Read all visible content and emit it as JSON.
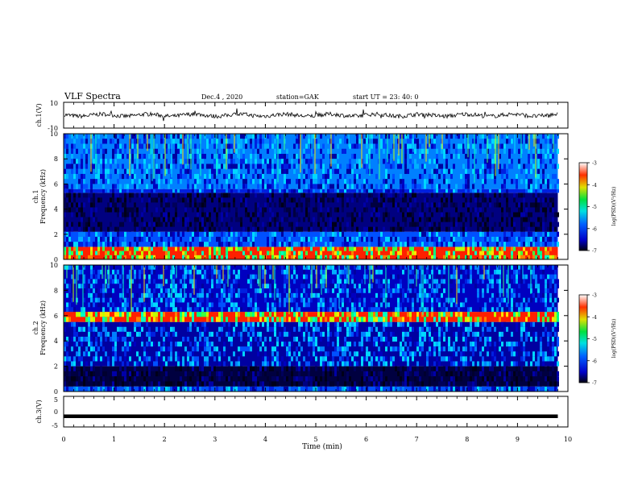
{
  "header": {
    "title": "VLF Spectra",
    "date": "Dec.4 , 2020",
    "station": "station=GAK",
    "start": "start UT = 23: 40: 0"
  },
  "chart_data": [
    {
      "id": "ch1-waveform",
      "type": "line",
      "ylabel": "ch.1(V)",
      "ylim": [
        -10,
        10
      ],
      "y_ticks": [
        "10",
        "-10"
      ],
      "xlim": [
        0,
        10
      ],
      "baseline": 0,
      "trace_color": "#000000"
    },
    {
      "id": "ch1-spectrogram",
      "type": "heatmap",
      "ylabel": "ch.1",
      "ylabel2": "Frequency (kHz)",
      "ylim": [
        0,
        10
      ],
      "y_ticks": [
        "0",
        "2",
        "4",
        "6",
        "8",
        "10"
      ],
      "xlim": [
        0,
        9.8
      ],
      "bands": [
        {
          "lo": 0,
          "hi": 1,
          "level": "high"
        },
        {
          "lo": 1,
          "hi": 2.2,
          "level": "medium"
        },
        {
          "lo": 2.2,
          "hi": 5.3,
          "level": "low"
        },
        {
          "lo": 5.3,
          "hi": 5.6,
          "level": "medium"
        },
        {
          "lo": 5.6,
          "hi": 10,
          "level": "medium"
        }
      ],
      "colorbar": {
        "label": "log(PSD)(V²/Hz)",
        "ticks": [
          "-3",
          "-4",
          "-5",
          "-6",
          "-7"
        ],
        "range": [
          -7,
          -3
        ]
      }
    },
    {
      "id": "ch2-spectrogram",
      "type": "heatmap",
      "ylabel": "ch.2",
      "ylabel2": "Frequency (kHz)",
      "ylim": [
        0,
        10
      ],
      "y_ticks": [
        "0",
        "2",
        "4",
        "6",
        "8",
        "10"
      ],
      "xlim": [
        0,
        9.8
      ],
      "bands": [
        {
          "lo": 0,
          "hi": 0.4,
          "level": "medium"
        },
        {
          "lo": 0.4,
          "hi": 2.0,
          "level": "low"
        },
        {
          "lo": 2.0,
          "hi": 5.5,
          "level": "medium"
        },
        {
          "lo": 5.5,
          "hi": 6.3,
          "level": "high"
        },
        {
          "lo": 6.3,
          "hi": 10,
          "level": "medium"
        }
      ],
      "colorbar": {
        "label": "log(PSD)(V²/Hz)",
        "ticks": [
          "-3",
          "-4",
          "-5",
          "-6",
          "-7"
        ],
        "range": [
          -7,
          -3
        ]
      }
    },
    {
      "id": "ch3-waveform",
      "type": "line",
      "ylabel": "ch.3(V)",
      "ylim": [
        -5,
        5
      ],
      "y_ticks": [
        "5",
        "0",
        "-5"
      ],
      "xlim": [
        0,
        9.8
      ],
      "constant_value": -1.5,
      "trace_color": "#000000"
    }
  ],
  "x_axis": {
    "label": "Time (min)",
    "ticks": [
      "0",
      "1",
      "2",
      "3",
      "4",
      "5",
      "6",
      "7",
      "8",
      "9",
      "10"
    ],
    "range": [
      0,
      10
    ]
  }
}
